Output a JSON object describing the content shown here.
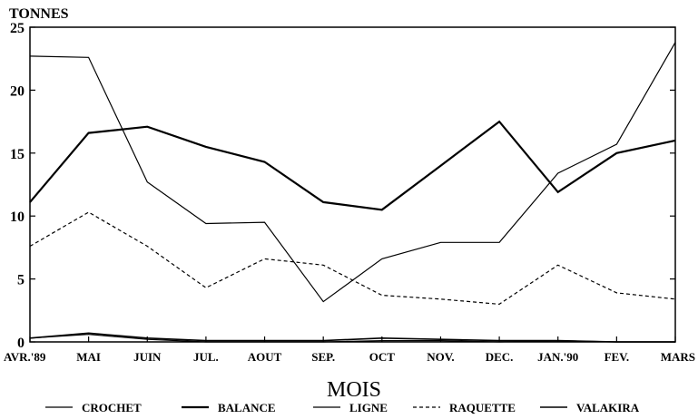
{
  "chart_data": {
    "type": "line",
    "ylabel": "TONNES",
    "xlabel": "MOIS",
    "ylim": [
      0,
      25
    ],
    "yticks": [
      0,
      5,
      10,
      15,
      20,
      25
    ],
    "categories": [
      "AVR.'89",
      "MAI",
      "JUIN",
      "JUL.",
      "AOUT",
      "SEP.",
      "OCT",
      "NOV.",
      "DEC.",
      "JAN.'90",
      "FEV.",
      "MARS"
    ],
    "grid": false,
    "legend_position": "bottom",
    "series": [
      {
        "name": "CROCHET",
        "style": "solid-thin",
        "color": "#000000",
        "values": [
          22.7,
          22.6,
          12.7,
          9.4,
          9.5,
          3.2,
          6.6,
          7.9,
          7.9,
          13.4,
          15.7,
          23.8
        ]
      },
      {
        "name": "BALANCE",
        "style": "solid-thick",
        "color": "#000000",
        "values": [
          11.1,
          16.6,
          17.1,
          15.5,
          14.3,
          11.1,
          10.5,
          14.0,
          17.5,
          11.9,
          15.0,
          16.0
        ]
      },
      {
        "name": "LIGNE",
        "style": "solid-thin",
        "color": "#000000",
        "values": [
          0.3,
          0.6,
          0.2,
          0.0,
          0.0,
          0.0,
          0.1,
          0.1,
          0.0,
          0.1,
          0.0,
          0.0
        ]
      },
      {
        "name": "RAQUETTE",
        "style": "dashed",
        "color": "#000000",
        "values": [
          7.6,
          10.3,
          7.6,
          4.3,
          6.6,
          6.1,
          3.7,
          3.4,
          3.0,
          6.1,
          3.9,
          3.4
        ]
      },
      {
        "name": "VALAKIRA",
        "style": "solid-medium",
        "color": "#000000",
        "values": [
          0.3,
          0.7,
          0.3,
          0.1,
          0.1,
          0.1,
          0.3,
          0.2,
          0.1,
          0.1,
          0.0,
          0.0
        ]
      }
    ]
  }
}
